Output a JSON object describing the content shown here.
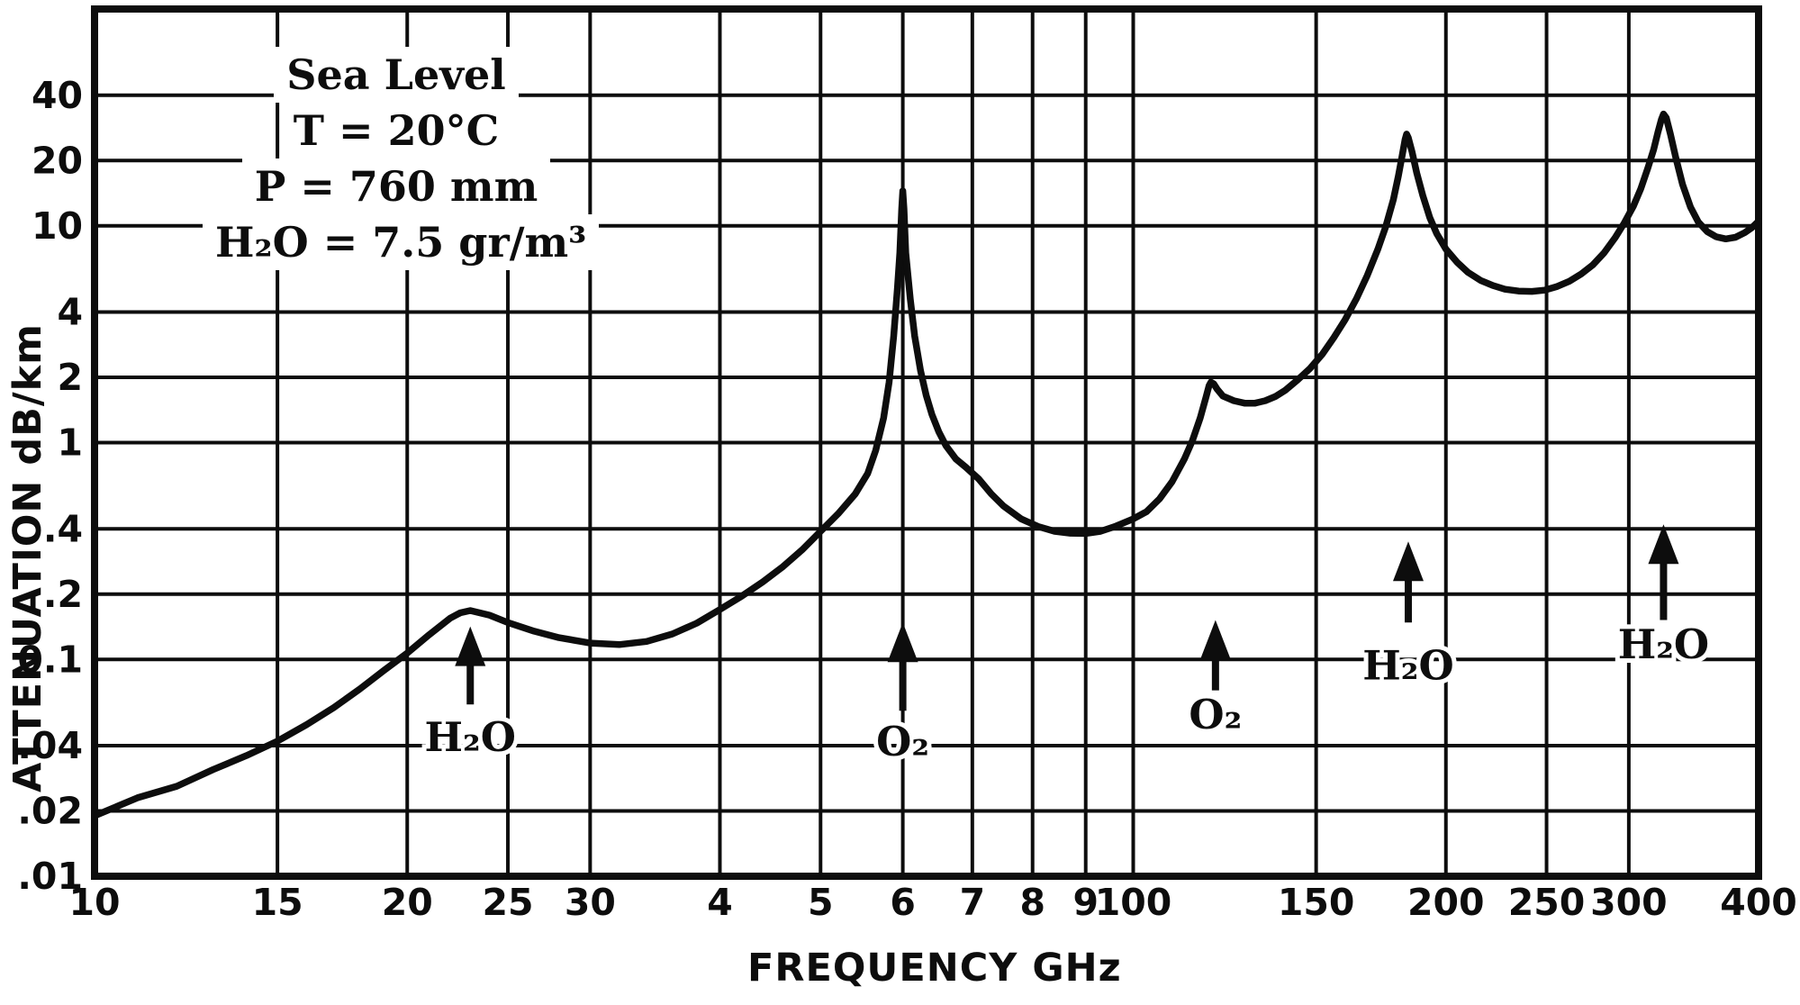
{
  "figure": {
    "background": "#ffffff",
    "ink": "#0d0d0d"
  },
  "chart_data": {
    "type": "line",
    "title": "",
    "xlabel": "FREQUENCY GHz",
    "ylabel": "ATTENUATION dB/km",
    "x_scale": "log",
    "y_scale": "log",
    "xlim": [
      10,
      400
    ],
    "ylim": [
      0.01,
      100
    ],
    "grid": true,
    "x_ticks": [
      {
        "label": "10",
        "value": 10
      },
      {
        "label": "15",
        "value": 15
      },
      {
        "label": "20",
        "value": 20
      },
      {
        "label": "25",
        "value": 25
      },
      {
        "label": "30",
        "value": 30
      },
      {
        "label": "4",
        "value": 40
      },
      {
        "label": "5",
        "value": 50
      },
      {
        "label": "6",
        "value": 60
      },
      {
        "label": "7",
        "value": 70
      },
      {
        "label": "8",
        "value": 80
      },
      {
        "label": "9",
        "value": 90
      },
      {
        "label": "100",
        "value": 100
      },
      {
        "label": "150",
        "value": 150
      },
      {
        "label": "200",
        "value": 200
      },
      {
        "label": "250",
        "value": 250
      },
      {
        "label": "300",
        "value": 300
      },
      {
        "label": "400",
        "value": 400
      }
    ],
    "y_ticks": [
      {
        "label": "40",
        "value": 40
      },
      {
        "label": "20",
        "value": 20
      },
      {
        "label": "10",
        "value": 10
      },
      {
        "label": "4",
        "value": 4
      },
      {
        "label": "2",
        "value": 2
      },
      {
        "label": "1",
        "value": 1
      },
      {
        "label": ".4",
        "value": 0.4
      },
      {
        "label": ".2",
        "value": 0.2
      },
      {
        "label": "0.1",
        "value": 0.1
      },
      {
        "label": ".04",
        "value": 0.04
      },
      {
        "label": ".02",
        "value": 0.02
      },
      {
        "label": ".01",
        "value": 0.01
      }
    ],
    "series": [
      {
        "name": "atmospheric-attenuation-sea-level",
        "color": "#0d0d0d",
        "points": [
          [
            10,
            0.019
          ],
          [
            11,
            0.023
          ],
          [
            12,
            0.026
          ],
          [
            13,
            0.031
          ],
          [
            14,
            0.036
          ],
          [
            15,
            0.042
          ],
          [
            16,
            0.05
          ],
          [
            17,
            0.06
          ],
          [
            18,
            0.073
          ],
          [
            19,
            0.089
          ],
          [
            20,
            0.107
          ],
          [
            21,
            0.13
          ],
          [
            22,
            0.155
          ],
          [
            22.5,
            0.164
          ],
          [
            23,
            0.168
          ],
          [
            24,
            0.16
          ],
          [
            25,
            0.148
          ],
          [
            26.5,
            0.135
          ],
          [
            28,
            0.126
          ],
          [
            30,
            0.119
          ],
          [
            32,
            0.117
          ],
          [
            34,
            0.121
          ],
          [
            36,
            0.131
          ],
          [
            38,
            0.147
          ],
          [
            40,
            0.17
          ],
          [
            42,
            0.196
          ],
          [
            44,
            0.228
          ],
          [
            46,
            0.268
          ],
          [
            48,
            0.32
          ],
          [
            50,
            0.39
          ],
          [
            52,
            0.47
          ],
          [
            54,
            0.58
          ],
          [
            55.5,
            0.72
          ],
          [
            56.5,
            0.92
          ],
          [
            57.5,
            1.3
          ],
          [
            58.2,
            1.9
          ],
          [
            58.8,
            3.1
          ],
          [
            59.3,
            5.2
          ],
          [
            59.6,
            7.5
          ],
          [
            59.85,
            12
          ],
          [
            60,
            14.5
          ],
          [
            60.15,
            12
          ],
          [
            60.4,
            7.5
          ],
          [
            61,
            4.6
          ],
          [
            61.6,
            3.1
          ],
          [
            62.4,
            2.15
          ],
          [
            63.2,
            1.65
          ],
          [
            64,
            1.35
          ],
          [
            65,
            1.12
          ],
          [
            66,
            0.97
          ],
          [
            67.5,
            0.84
          ],
          [
            69,
            0.77
          ],
          [
            71,
            0.68
          ],
          [
            73,
            0.58
          ],
          [
            75,
            0.51
          ],
          [
            78,
            0.445
          ],
          [
            81,
            0.41
          ],
          [
            84,
            0.39
          ],
          [
            87,
            0.382
          ],
          [
            90,
            0.381
          ],
          [
            93,
            0.39
          ],
          [
            96,
            0.41
          ],
          [
            100,
            0.445
          ],
          [
            103,
            0.48
          ],
          [
            106,
            0.55
          ],
          [
            109,
            0.66
          ],
          [
            112,
            0.84
          ],
          [
            114,
            1.02
          ],
          [
            116,
            1.3
          ],
          [
            117.5,
            1.62
          ],
          [
            118.3,
            1.83
          ],
          [
            118.8,
            1.9
          ],
          [
            119.5,
            1.87
          ],
          [
            120.5,
            1.76
          ],
          [
            122,
            1.64
          ],
          [
            125,
            1.56
          ],
          [
            128,
            1.52
          ],
          [
            131,
            1.52
          ],
          [
            134,
            1.56
          ],
          [
            137,
            1.63
          ],
          [
            140,
            1.74
          ],
          [
            144,
            1.95
          ],
          [
            148,
            2.2
          ],
          [
            152,
            2.55
          ],
          [
            156,
            3.05
          ],
          [
            160,
            3.7
          ],
          [
            164,
            4.6
          ],
          [
            168,
            5.9
          ],
          [
            172,
            7.8
          ],
          [
            175,
            9.9
          ],
          [
            178,
            13.2
          ],
          [
            180,
            17
          ],
          [
            181.5,
            21
          ],
          [
            182.7,
            25
          ],
          [
            183.3,
            26.5
          ],
          [
            184,
            25.5
          ],
          [
            185.5,
            22
          ],
          [
            187.5,
            17.5
          ],
          [
            190,
            13.8
          ],
          [
            193,
            10.9
          ],
          [
            196,
            9.2
          ],
          [
            200,
            7.8
          ],
          [
            205,
            6.8
          ],
          [
            210,
            6.1
          ],
          [
            216,
            5.6
          ],
          [
            222,
            5.3
          ],
          [
            228,
            5.1
          ],
          [
            235,
            5.0
          ],
          [
            242,
            4.98
          ],
          [
            249,
            5.05
          ],
          [
            256,
            5.25
          ],
          [
            263,
            5.55
          ],
          [
            270,
            6.0
          ],
          [
            277,
            6.6
          ],
          [
            284,
            7.5
          ],
          [
            291,
            8.8
          ],
          [
            297,
            10.3
          ],
          [
            303,
            12.3
          ],
          [
            308,
            14.8
          ],
          [
            313,
            18.5
          ],
          [
            317,
            22.5
          ],
          [
            320,
            27
          ],
          [
            322.5,
            31
          ],
          [
            324,
            32.8
          ],
          [
            326,
            31.5
          ],
          [
            329,
            26.5
          ],
          [
            333,
            20.5
          ],
          [
            338,
            15.5
          ],
          [
            344,
            12.2
          ],
          [
            350,
            10.4
          ],
          [
            357,
            9.4
          ],
          [
            364,
            8.9
          ],
          [
            372,
            8.7
          ],
          [
            380,
            8.85
          ],
          [
            388,
            9.3
          ],
          [
            394,
            9.8
          ],
          [
            400,
            10.5
          ]
        ]
      }
    ],
    "annotations": {
      "conditions": [
        "Sea Level",
        "T = 20°C",
        "P = 760 mm",
        "H₂O = 7.5 gr/m³"
      ],
      "peak_markers": [
        {
          "label": "H₂O",
          "freq": 23,
          "arrow_tip": 0.142,
          "arrow_tail": 0.062,
          "label_y": 0.044
        },
        {
          "label": "O₂",
          "freq": 60,
          "arrow_tip": 0.148,
          "arrow_tail": 0.058,
          "label_y": 0.042
        },
        {
          "label": "O₂",
          "freq": 120,
          "arrow_tip": 0.152,
          "arrow_tail": 0.072,
          "label_y": 0.056
        },
        {
          "label": "H₂O",
          "freq": 184,
          "arrow_tip": 0.35,
          "arrow_tail": 0.148,
          "label_y": 0.094
        },
        {
          "label": "H₂O",
          "freq": 324,
          "arrow_tip": 0.42,
          "arrow_tail": 0.152,
          "label_y": 0.118
        }
      ]
    }
  }
}
